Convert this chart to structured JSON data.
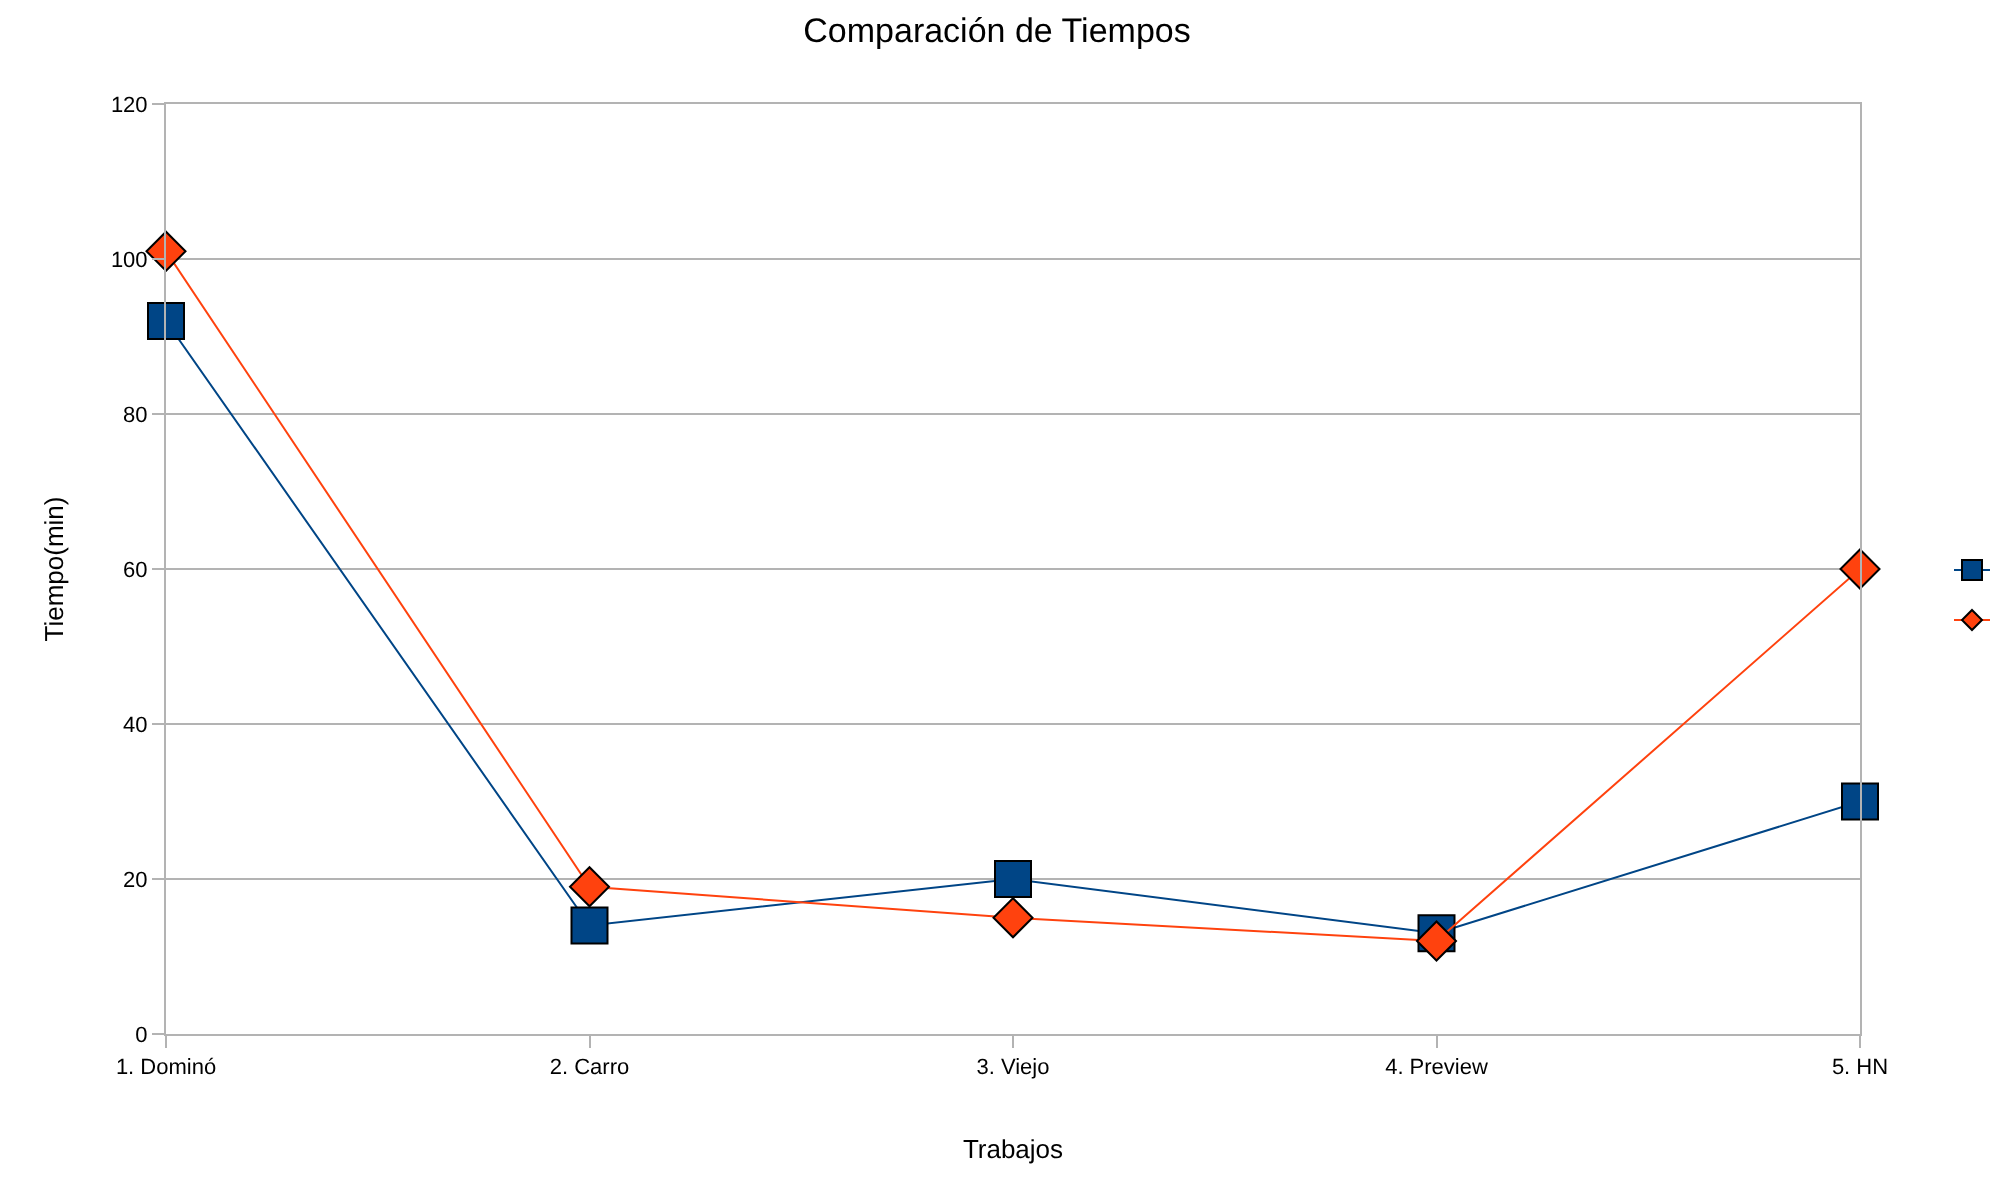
{
  "chart_data": {
    "type": "line",
    "title": "Comparación de Tiempos",
    "xlabel": "Trabajos",
    "ylabel": "Tiempo(min)",
    "categories": [
      "1. Dominó",
      "2. Carro",
      "3. Viejo",
      "4. Preview",
      "5. HN"
    ],
    "series": [
      {
        "color": "#004586",
        "marker": "square",
        "values": [
          92,
          14,
          20,
          13,
          30
        ]
      },
      {
        "color": "#ff420e",
        "marker": "diamond",
        "values": [
          101,
          19,
          15,
          12,
          60
        ]
      }
    ],
    "ylim": [
      0,
      120
    ],
    "yticks": [
      0,
      20,
      40,
      60,
      80,
      100,
      120
    ],
    "grid": "y",
    "line_style": "solid"
  }
}
